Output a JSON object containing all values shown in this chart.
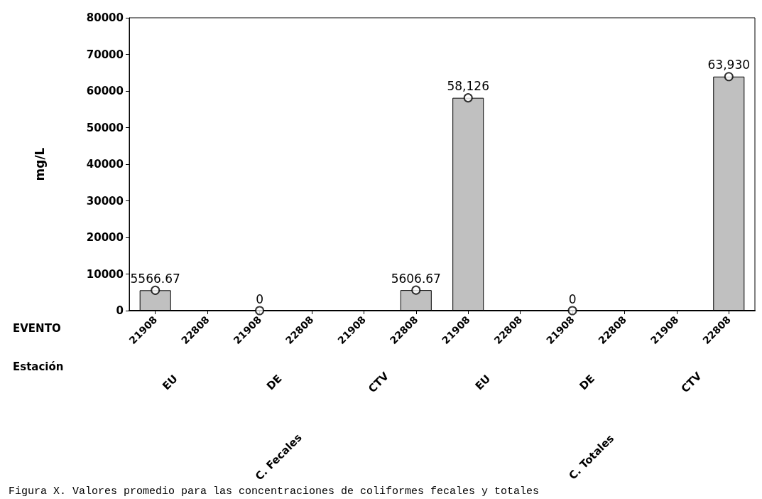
{
  "chart_data": {
    "type": "bar",
    "ylabel": "mg/L",
    "categories": [
      "21908",
      "22808",
      "21908",
      "22808",
      "21908",
      "22808",
      "21908",
      "22808",
      "21908",
      "22808",
      "21908",
      "22808"
    ],
    "series": [
      {
        "color": "#c0c0c0",
        "values": [
          5566.67,
          null,
          0,
          null,
          null,
          5606.67,
          58126,
          null,
          0,
          null,
          null,
          63930
        ],
        "value_labels": [
          "5566.67",
          null,
          "0",
          null,
          null,
          "5606.67",
          "58,126",
          null,
          "0",
          null,
          null,
          "63,930"
        ]
      },
      {
        "type": "scatter",
        "color": "#000000",
        "marker": "circle",
        "values": [
          5566.67,
          null,
          0,
          null,
          null,
          5606.67,
          58126,
          null,
          0,
          null,
          null,
          63930
        ]
      }
    ],
    "ylim": [
      0,
      80000
    ],
    "yticks": [
      0,
      10000,
      20000,
      30000,
      40000,
      50000,
      60000,
      70000,
      80000
    ],
    "grid": false,
    "annotations": [
      "EVENTO",
      "Estación",
      "EU",
      "DE",
      "CTV",
      "EU",
      "DE",
      "CTV",
      "C. Fecales",
      "C. Totales",
      "Figura X. Valores promedio para las concentraciones de coliformes fecales y totales"
    ]
  }
}
